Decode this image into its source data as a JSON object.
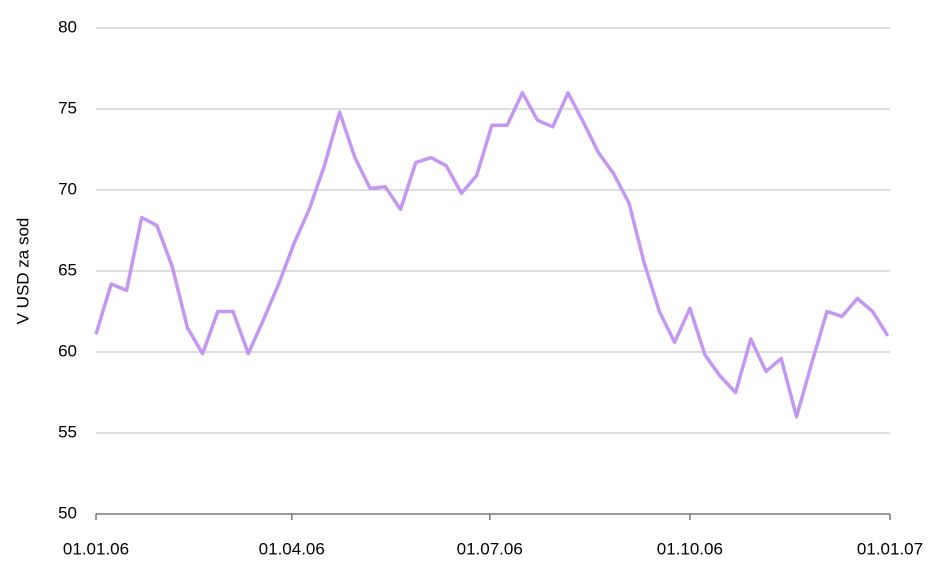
{
  "chart_data": {
    "type": "line",
    "y_label": "V USD za sod",
    "color": "#c497f2",
    "grid": true,
    "xlim": [
      "2006-01-01",
      "2007-01-01"
    ],
    "xticks": [
      {
        "value": "2006-01-01",
        "label": "01.01.06"
      },
      {
        "value": "2006-04-01",
        "label": "01.04.06"
      },
      {
        "value": "2006-07-01",
        "label": "01.07.06"
      },
      {
        "value": "2006-10-01",
        "label": "01.10.06"
      },
      {
        "value": "2007-01-01",
        "label": "01.01.07"
      }
    ],
    "ylim": [
      50,
      80
    ],
    "yticks": [
      50,
      55,
      60,
      65,
      70,
      75,
      80
    ],
    "x": [
      "2006-01-01",
      "2006-01-08",
      "2006-01-15",
      "2006-01-22",
      "2006-01-29",
      "2006-02-05",
      "2006-02-12",
      "2006-02-19",
      "2006-02-26",
      "2006-03-05",
      "2006-03-12",
      "2006-03-19",
      "2006-03-26",
      "2006-04-02",
      "2006-04-09",
      "2006-04-16",
      "2006-04-23",
      "2006-04-30",
      "2006-05-07",
      "2006-05-14",
      "2006-05-21",
      "2006-05-28",
      "2006-06-04",
      "2006-06-11",
      "2006-06-18",
      "2006-06-25",
      "2006-07-02",
      "2006-07-09",
      "2006-07-16",
      "2006-07-23",
      "2006-07-30",
      "2006-08-06",
      "2006-08-13",
      "2006-08-20",
      "2006-08-27",
      "2006-09-03",
      "2006-09-10",
      "2006-09-17",
      "2006-09-24",
      "2006-10-01",
      "2006-10-08",
      "2006-10-15",
      "2006-10-22",
      "2006-10-29",
      "2006-11-05",
      "2006-11-12",
      "2006-11-19",
      "2006-11-26",
      "2006-12-03",
      "2006-12-10",
      "2006-12-17",
      "2006-12-24",
      "2006-12-31"
    ],
    "values": [
      61.1,
      64.2,
      63.8,
      68.3,
      67.8,
      65.3,
      61.5,
      59.9,
      62.5,
      62.5,
      59.9,
      62,
      64.2,
      66.7,
      68.8,
      71.5,
      74.8,
      72,
      70.1,
      70.2,
      68.8,
      71.7,
      72,
      71.5,
      69.8,
      70.9,
      74,
      74,
      76,
      74.3,
      73.9,
      76,
      74.2,
      72.3,
      71,
      69.2,
      65.5,
      62.5,
      60.6,
      62.7,
      59.8,
      58.5,
      57.5,
      60.8,
      58.8,
      59.6,
      56,
      59.3,
      62.5,
      62.2,
      63.3,
      62.5,
      61
    ]
  }
}
